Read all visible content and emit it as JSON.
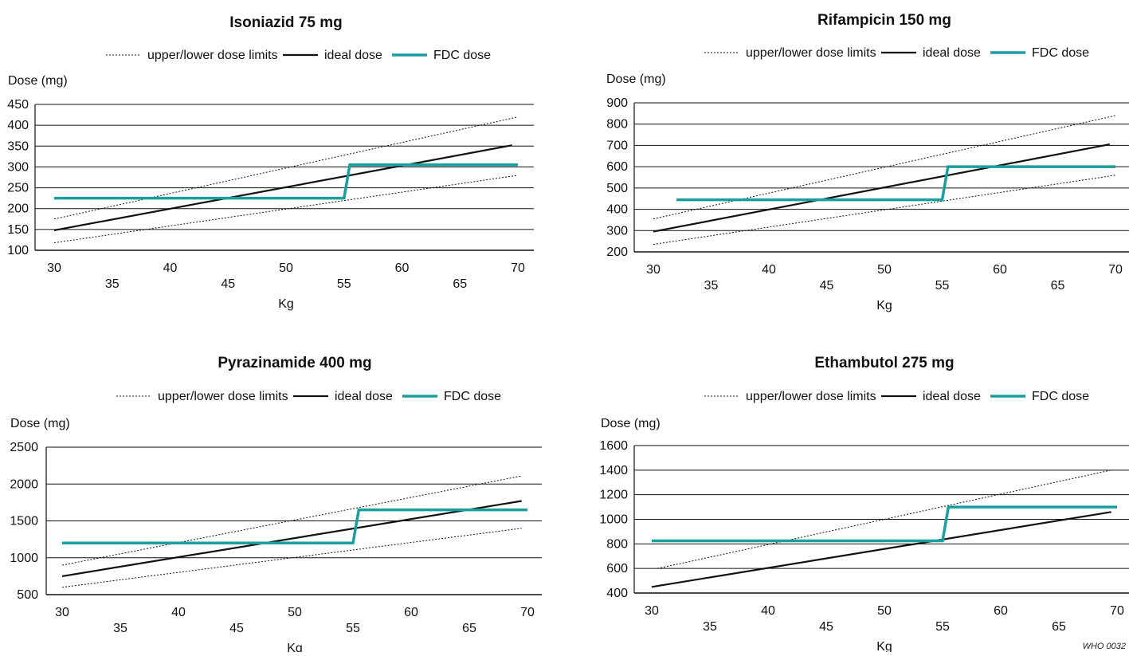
{
  "legend": {
    "limits": "upper/lower dose limits",
    "ideal": "ideal dose",
    "fdc": "FDC dose"
  },
  "colors": {
    "fdc": "#1a9e9e",
    "ideal": "#111111",
    "limits": "#111111",
    "grid": "#111111"
  },
  "credit": "WHO 0032",
  "chart_data": [
    {
      "type": "line",
      "title": "Isoniazid 75 mg",
      "xlabel": "Kg",
      "ylabel": "Dose (mg)",
      "xlim": [
        30,
        70
      ],
      "ylim": [
        100,
        450
      ],
      "yticks": [
        100,
        150,
        200,
        250,
        300,
        350,
        400,
        450
      ],
      "xticks": [
        30,
        35,
        40,
        45,
        50,
        55,
        60,
        65,
        70
      ],
      "grid": "horizontal",
      "legend_position": "top",
      "series": [
        {
          "name": "upper/lower dose limits",
          "style": "dotted",
          "x": [
            30,
            70
          ],
          "y": [
            175,
            420
          ]
        },
        {
          "name": "upper/lower dose limits",
          "style": "dotted",
          "x": [
            30,
            70
          ],
          "y": [
            118,
            280
          ]
        },
        {
          "name": "ideal dose",
          "style": "solid",
          "x": [
            30,
            69.5
          ],
          "y": [
            148,
            352
          ]
        },
        {
          "name": "FDC dose",
          "style": "thick",
          "x": [
            30,
            55,
            55.5,
            70
          ],
          "y": [
            225,
            225,
            305,
            305
          ]
        }
      ]
    },
    {
      "type": "line",
      "title": "Rifampicin 150 mg",
      "xlabel": "Kg",
      "ylabel": "Dose (mg)",
      "xlim": [
        30,
        70
      ],
      "ylim": [
        200,
        900
      ],
      "yticks": [
        200,
        300,
        400,
        500,
        600,
        700,
        800,
        900
      ],
      "xticks": [
        30,
        35,
        40,
        45,
        50,
        55,
        60,
        65,
        70
      ],
      "grid": "horizontal",
      "legend_position": "top",
      "series": [
        {
          "name": "upper/lower dose limits",
          "style": "dotted",
          "x": [
            30,
            70
          ],
          "y": [
            355,
            840
          ]
        },
        {
          "name": "upper/lower dose limits",
          "style": "dotted",
          "x": [
            30,
            70
          ],
          "y": [
            235,
            560
          ]
        },
        {
          "name": "ideal dose",
          "style": "solid",
          "x": [
            30,
            69.5
          ],
          "y": [
            295,
            705
          ]
        },
        {
          "name": "FDC dose",
          "style": "thick",
          "x": [
            32,
            55,
            55.5,
            70
          ],
          "y": [
            445,
            445,
            600,
            600
          ]
        }
      ]
    },
    {
      "type": "line",
      "title": "Pyrazinamide 400 mg",
      "xlabel": "Kg",
      "ylabel": "Dose (mg)",
      "xlim": [
        30,
        70
      ],
      "ylim": [
        500,
        2500
      ],
      "yticks": [
        500,
        1000,
        1500,
        2000,
        2500
      ],
      "xticks": [
        30,
        35,
        40,
        45,
        50,
        55,
        60,
        65,
        70
      ],
      "grid": "horizontal",
      "legend_position": "top",
      "series": [
        {
          "name": "upper/lower dose limits",
          "style": "dotted",
          "x": [
            30,
            69.5
          ],
          "y": [
            900,
            2110
          ]
        },
        {
          "name": "upper/lower dose limits",
          "style": "dotted",
          "x": [
            30,
            69.5
          ],
          "y": [
            600,
            1400
          ]
        },
        {
          "name": "ideal dose",
          "style": "solid",
          "x": [
            30,
            69.5
          ],
          "y": [
            750,
            1770
          ]
        },
        {
          "name": "FDC dose",
          "style": "thick",
          "x": [
            30,
            55,
            55.5,
            70
          ],
          "y": [
            1200,
            1200,
            1650,
            1650
          ]
        }
      ]
    },
    {
      "type": "line",
      "title": "Ethambutol 275 mg",
      "xlabel": "Kg",
      "ylabel": "Dose (mg)",
      "xlim": [
        30,
        70
      ],
      "ylim": [
        400,
        1600
      ],
      "yticks": [
        400,
        600,
        800,
        1000,
        1200,
        1400,
        1600
      ],
      "xticks": [
        30,
        35,
        40,
        45,
        50,
        55,
        60,
        65,
        70
      ],
      "grid": "horizontal",
      "legend_position": "top",
      "series": [
        {
          "name": "upper/lower dose limits",
          "style": "dotted",
          "x": [
            30.5,
            69.5
          ],
          "y": [
            600,
            1400
          ]
        },
        {
          "name": "ideal dose",
          "style": "solid",
          "x": [
            30,
            69.5
          ],
          "y": [
            450,
            1060
          ]
        },
        {
          "name": "FDC dose",
          "style": "thick",
          "x": [
            30,
            55,
            55.5,
            70
          ],
          "y": [
            825,
            825,
            1100,
            1100
          ]
        }
      ]
    }
  ]
}
